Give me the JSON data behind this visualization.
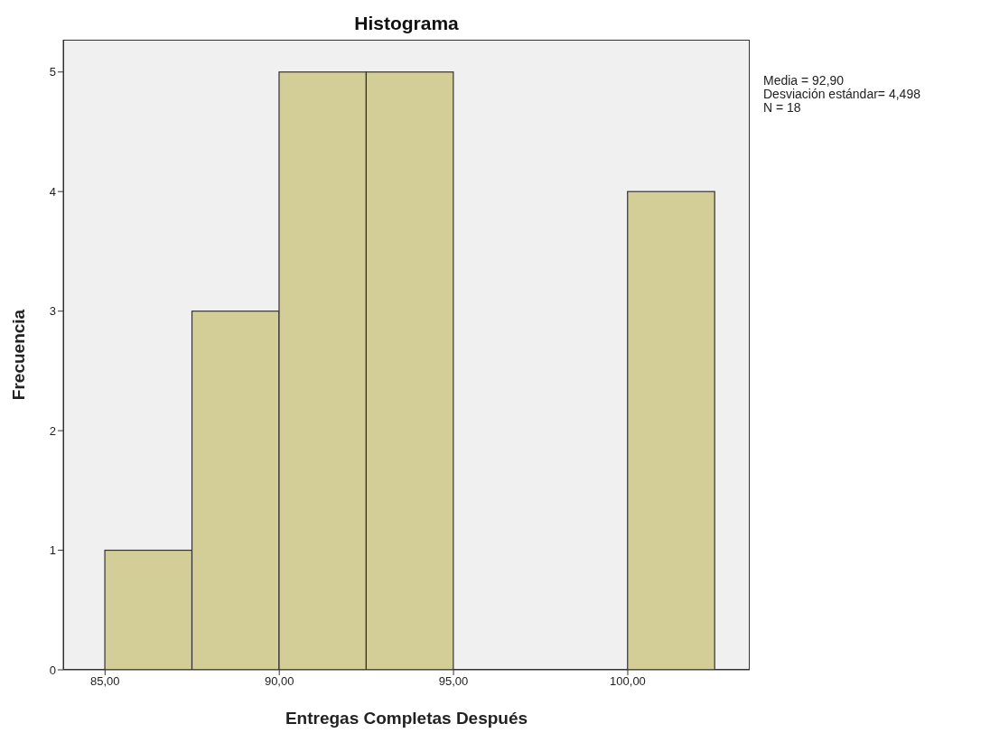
{
  "chart_data": {
    "type": "histogram",
    "title": "Histograma",
    "xlabel": "Entregas Completas Después",
    "ylabel": "Frecuencia",
    "bins": [
      85,
      87.5,
      90,
      92.5,
      95,
      97.5,
      100,
      102.5
    ],
    "values": [
      1,
      3,
      5,
      5,
      0,
      0,
      4
    ],
    "color": "#d3ce97",
    "xlim": [
      83.8,
      103.5
    ],
    "xticks": [
      {
        "value": 85,
        "label": "85,00"
      },
      {
        "value": 90,
        "label": "90,00"
      },
      {
        "value": 95,
        "label": "95,00"
      },
      {
        "value": 100,
        "label": "100,00"
      }
    ],
    "ylim": [
      0,
      5.27
    ],
    "yticks": [
      0,
      1,
      2,
      3,
      4,
      5
    ],
    "grid": false,
    "annotations": [
      "Media = 92,90",
      "Desviación estándar= 4,498",
      "N = 18"
    ]
  }
}
